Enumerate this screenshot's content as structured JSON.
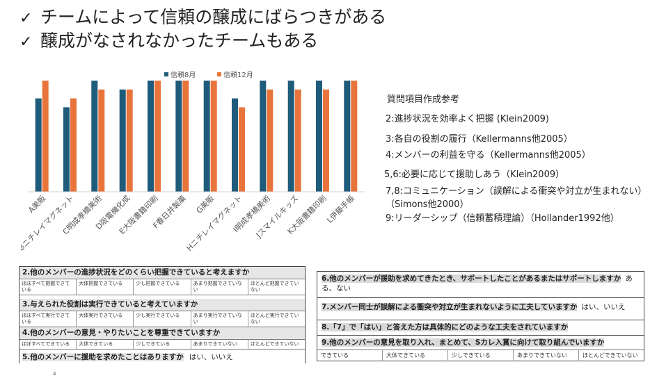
{
  "headlines": [
    {
      "check": "✓",
      "text": "チームによって信頼の醸成にばらつきがある"
    },
    {
      "check": "✓",
      "text": "醸成がなされなかったチームもある"
    }
  ],
  "chart_data": {
    "type": "bar",
    "categories": [
      "A美販",
      "Bニチレイマグネット",
      "C明成孝橋美術",
      "D阪電機化成",
      "E大阪書籍印刷",
      "F春日井製菓",
      "G美販",
      "Hニチレイマグネット",
      "I明成孝橋美術",
      "Jスマイルキッズ",
      "K大阪書籍印刷",
      "L伊藤手帳"
    ],
    "series": [
      {
        "name": "信頼8月",
        "color": "#1f5b7a",
        "values": [
          4.2,
          3.8,
          5.0,
          4.6,
          5.0,
          5.0,
          5.0,
          4.2,
          5.0,
          5.0,
          5.0,
          5.0
        ]
      },
      {
        "name": "信頼12月",
        "color": "#e8743b",
        "values": [
          5.0,
          4.2,
          4.6,
          4.6,
          5.0,
          5.0,
          5.0,
          3.8,
          4.6,
          4.6,
          4.6,
          5.0
        ]
      }
    ],
    "ylim": [
      0,
      5
    ],
    "legend": "top-center",
    "grid": false
  },
  "references": {
    "title": "質問項目作成参考",
    "items": [
      "2:進捗状況を効率よく把握 (Klein2009)",
      "3:各自の役割の履行（Kellermanns他2005）",
      "4:メンバーの利益を守る（Kellermanns他2005）",
      "5,6:必要に応じて援助しあう（Klein2009）",
      "7,8:コミュニケーション（誤解による衝突や対立が生まれない）（Simons他2000）",
      "9:リーダーシップ（信頼蓄積理論）（Hollander1992他）"
    ]
  },
  "questions_left": {
    "q2": {
      "text": "2.他のメンバーの進捗状況をどのくらい把握できていると考えますか",
      "options": [
        "ほぼすべて把握できている",
        "大体把握できている",
        "少し把握できている",
        "あまり把握できていない",
        "ほとんど把握できていない"
      ]
    },
    "q3": {
      "text": "3.与えられた役割は実行できていると考えていますか",
      "options": [
        "ほぼすべて実行できている",
        "大体実行できている",
        "少し実行できている",
        "あまり実行できていない",
        "ほとんど実行できていない"
      ]
    },
    "q4": {
      "text": "4.他のメンバーの意見・やりたいことを尊重できていますか",
      "options": [
        "ほぼすべてできている",
        "大体できている",
        "少しできている",
        "あまりできていない",
        "ほとんどできていない"
      ]
    },
    "q5": {
      "text": "5.他のメンバーに援助を求めたことはありますか",
      "answer": "はい、いいえ"
    }
  },
  "questions_right": {
    "q6": {
      "text": "6.他のメンバーが援助を求めてきたとき、サポートしたことがあるまたはサポートしますか",
      "answer": "ある、ない"
    },
    "q7": {
      "text": "7.メンバー同士が誤解による衝突や対立が生まれないように工夫していますか",
      "answer": "はい、いいえ"
    },
    "q8": {
      "text": "8.「7」で「はい」と答えた方は具体的にどのような工夫をされていますか"
    },
    "q9": {
      "text": "9.他のメンバーの意見を取り入れ、まとめて、Sカレ入賞に向けて取り組んでいますか",
      "options": [
        "できている",
        "大体できている",
        "少しできている",
        "あまりできていない",
        "ほとんどできていない"
      ]
    }
  },
  "footnote": "4"
}
